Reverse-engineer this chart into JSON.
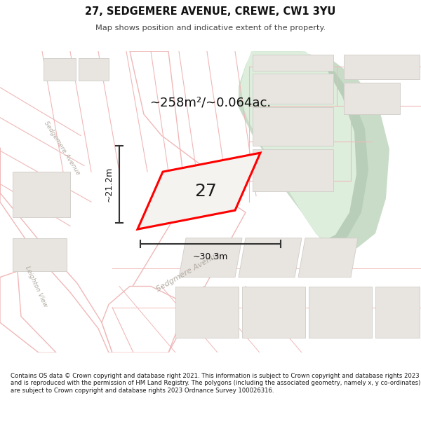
{
  "title": "27, SEDGEMERE AVENUE, CREWE, CW1 3YU",
  "subtitle": "Map shows position and indicative extent of the property.",
  "footer": "Contains OS data © Crown copyright and database right 2021. This information is subject to Crown copyright and database rights 2023 and is reproduced with the permission of HM Land Registry. The polygons (including the associated geometry, namely x, y co-ordinates) are subject to Crown copyright and database rights 2023 Ordnance Survey 100026316.",
  "area_label": "~258m²/~0.064ac.",
  "property_number": "27",
  "dim_width": "~30.3m",
  "dim_height": "~21.2m",
  "bg_color": "#f5f3f0",
  "title_color": "#000000",
  "property_poly_color": "#ff0000",
  "road_pink": "#f0b8b8",
  "building_fill": "#e8e4e0",
  "building_edge": "#d0ccc8",
  "green_light": "#c8dcc8",
  "green_mid": "#b8ceb8",
  "green_dark": "#a8c0a8",
  "white_road": "#ffffff",
  "dim_color": "#333333",
  "label_color": "#b8b0a8",
  "road_label_color": "#b0aaa0"
}
